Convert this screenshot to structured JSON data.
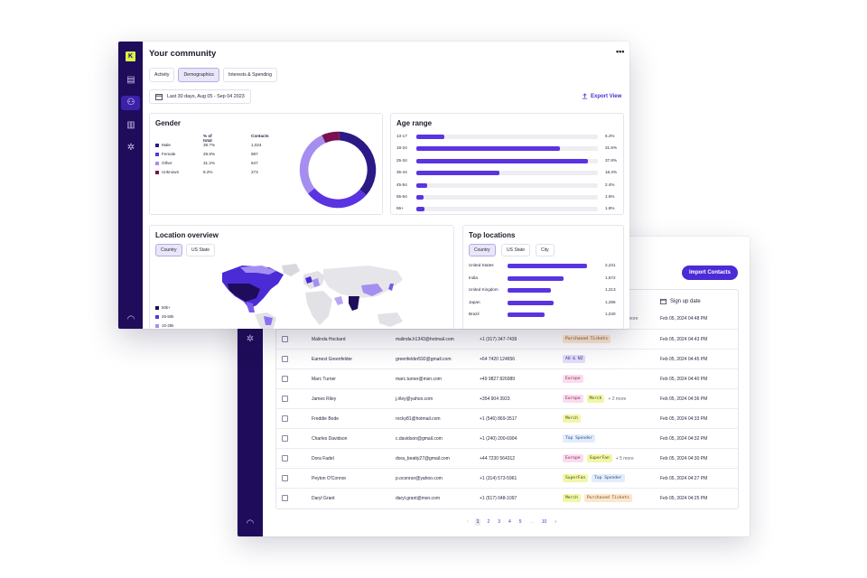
{
  "community": {
    "title": "Your community",
    "menu_label": "•••",
    "logo_letter": "K",
    "tabs": [
      "Activity",
      "Demographics",
      "Interests & Spending"
    ],
    "active_tab": "Demographics",
    "date_range": "Last 30 days, Aug 05 - Sep 04 2023",
    "export_label": "Export View",
    "gender": {
      "title": "Gender",
      "col_pct": "% of total",
      "col_contacts": "Contacts",
      "rows": [
        {
          "label": "Male",
          "pct": "38.7%",
          "contacts": "1,024",
          "value": 38.7,
          "color": "#2b1a86"
        },
        {
          "label": "Female",
          "pct": "29.9%",
          "contacts": "987",
          "value": 29.9,
          "color": "#5a34e0"
        },
        {
          "label": "Other",
          "pct": "31.2%",
          "contacts": "647",
          "value": 31.2,
          "color": "#a58ef0"
        },
        {
          "label": "Unknown",
          "pct": "8.2%",
          "contacts": "273",
          "value": 8.2,
          "color": "#7a1150"
        }
      ]
    },
    "age_range": {
      "title": "Age range",
      "rows": [
        {
          "label": "13-17",
          "pct": "6.2%",
          "value": 6.2
        },
        {
          "label": "18-24",
          "pct": "31.6%",
          "value": 31.6
        },
        {
          "label": "25-34",
          "pct": "37.8%",
          "value": 37.8
        },
        {
          "label": "35-44",
          "pct": "18.3%",
          "value": 18.3
        },
        {
          "label": "45-54",
          "pct": "2.4%",
          "value": 2.4
        },
        {
          "label": "55-64",
          "pct": "1.6%",
          "value": 1.6
        },
        {
          "label": "65+",
          "pct": "1.8%",
          "value": 1.8
        }
      ]
    },
    "location_overview": {
      "title": "Location overview",
      "segments": [
        "Country",
        "US State"
      ],
      "active_segment": "Country",
      "legend": [
        "50k+",
        "25-50k",
        "10-25k"
      ]
    },
    "top_locations": {
      "title": "Top locations",
      "segments": [
        "Country",
        "US State",
        "City"
      ],
      "active_segment": "Country",
      "rows": [
        {
          "label": "United States",
          "value_label": "2,231",
          "value": 2231
        },
        {
          "label": "India",
          "value_label": "1,572",
          "value": 1572
        },
        {
          "label": "United Kingdom",
          "value_label": "1,213",
          "value": 1213
        },
        {
          "label": "Japan",
          "value_label": "1,286",
          "value": 1286
        },
        {
          "label": "Brazil",
          "value_label": "1,040",
          "value": 1040
        }
      ]
    }
  },
  "contacts": {
    "import_label": "Import Contacts",
    "signup_header": "Sign up date",
    "partial_more": "more",
    "partial_dates": [
      "Feb 05, 2024 04:48 PM",
      "Feb 05, 2024 04:45 PM"
    ],
    "rows": [
      {
        "name": "Malinda Hockard",
        "email": "malinda.h1343@hotmail.com",
        "phone": "+1 (317) 347-7439",
        "tags": [
          {
            "text": "Purchased Tickets",
            "color": "orange"
          }
        ],
        "more": "",
        "date": "Feb 05, 2024 04:43 PM"
      },
      {
        "name": "Earnest Greenfelder",
        "email": "greenfelder592@gmail.com",
        "phone": "+64 7420 124656",
        "tags": [
          {
            "text": "AU & NZ",
            "color": "lav"
          }
        ],
        "more": "",
        "date": "Feb 05, 2024 04:45 PM"
      },
      {
        "name": "Marc Turner",
        "email": "marc.turner@msn.com",
        "phone": "+49 9827 826989",
        "tags": [
          {
            "text": "Europe",
            "color": "pink"
          }
        ],
        "more": "",
        "date": "Feb 05, 2024 04:40 PM"
      },
      {
        "name": "James Riley",
        "email": "j.riley@yahoo.com",
        "phone": "+354 904 3923",
        "tags": [
          {
            "text": "Europe",
            "color": "pink"
          },
          {
            "text": "Merch",
            "color": "yellow"
          }
        ],
        "more": "+ 2 more",
        "date": "Feb 05, 2024 04:36 PM"
      },
      {
        "name": "Freddie Bode",
        "email": "rocky81@hotmail.com",
        "phone": "+1 (546) 869-3517",
        "tags": [
          {
            "text": "Merch",
            "color": "yellow"
          }
        ],
        "more": "",
        "date": "Feb 05, 2024 04:33 PM"
      },
      {
        "name": "Charles Davidson",
        "email": "c.davidson@gmail.com",
        "phone": "+1 (240) 200-6904",
        "tags": [
          {
            "text": "Top Spender",
            "color": "blue"
          }
        ],
        "more": "",
        "date": "Feb 05, 2024 04:32 PM"
      },
      {
        "name": "Dora Fadel",
        "email": "dora_beatty27@gmail.com",
        "phone": "+44 7230 564312",
        "tags": [
          {
            "text": "Europe",
            "color": "pink"
          },
          {
            "text": "SuperFan",
            "color": "yellow"
          }
        ],
        "more": "+ 5 more",
        "date": "Feb 05, 2024 04:30 PM"
      },
      {
        "name": "Peyton O'Connor",
        "email": "p.oconnor@yahoo.com",
        "phone": "+1 (314) 573-5961",
        "tags": [
          {
            "text": "SuperFan",
            "color": "yellow"
          },
          {
            "text": "Top Spender",
            "color": "blue"
          }
        ],
        "more": "",
        "date": "Feb 05, 2024 04:27 PM"
      },
      {
        "name": "Daryl Grant",
        "email": "daryl.grant@msn.com",
        "phone": "+1 (517) 048-1097",
        "tags": [
          {
            "text": "Merch",
            "color": "yellow"
          },
          {
            "text": "Purchased Tickets",
            "color": "orange"
          }
        ],
        "more": "",
        "date": "Feb 05, 2024 04:25 PM"
      }
    ],
    "pager": {
      "prev": "‹",
      "pages": [
        "1",
        "2",
        "3",
        "4",
        "5"
      ],
      "ellipsis": "...",
      "last": "10",
      "next": "›",
      "active": "1"
    }
  },
  "colors": {
    "accent": "#4b2bd6",
    "rail": "#1f0c5a",
    "logo": "#d7f24a"
  }
}
